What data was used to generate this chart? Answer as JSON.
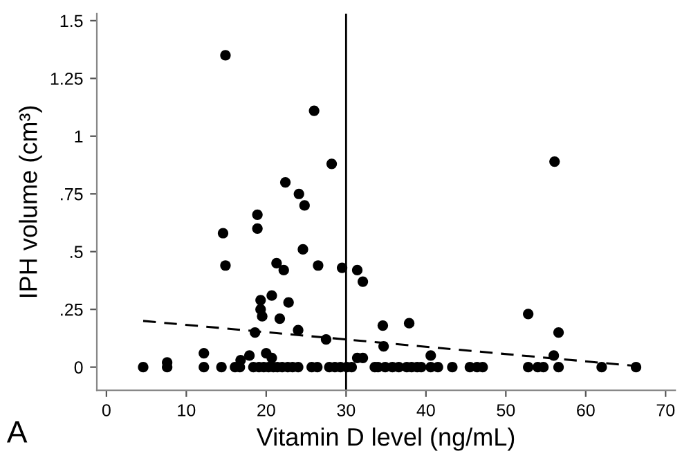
{
  "chart_data": {
    "type": "scatter",
    "xlabel": "Vitamin D level (ng/mL)",
    "ylabel": "IPH volume (cm³)",
    "annotations": [
      "A"
    ],
    "xlim": [
      -1.2,
      71.2
    ],
    "ylim": [
      -0.1,
      1.53
    ],
    "xticks": [
      0,
      10,
      20,
      30,
      40,
      50,
      60,
      70
    ],
    "yticks": [
      {
        "value": 0,
        "label": "0"
      },
      {
        "value": 0.25,
        "label": ".25"
      },
      {
        "value": 0.5,
        "label": ".5"
      },
      {
        "value": 0.75,
        "label": ".75"
      },
      {
        "value": 1,
        "label": "1"
      },
      {
        "value": 1.25,
        "label": "1.25"
      },
      {
        "value": 1.5,
        "label": "1.5"
      }
    ],
    "grid": false,
    "legend": false,
    "marker": "circle",
    "ref_lines": [
      {
        "axis": "x",
        "value": 30,
        "color": "#000000"
      }
    ],
    "series": [
      {
        "color": "#000000",
        "x": [
          14.9,
          26.0,
          28.2,
          22.4,
          24.1,
          24.8,
          18.9,
          18.9,
          14.6,
          56.1,
          24.6,
          14.9,
          21.3,
          22.2,
          26.5,
          29.5,
          31.4,
          32.1,
          20.7,
          19.3,
          19.3,
          19.5,
          22.8,
          21.7,
          18.6,
          24.0,
          27.5,
          34.6,
          34.7,
          12.2,
          17.9,
          16.8,
          20.0,
          20.7,
          31.4,
          32.1,
          37.9,
          40.6,
          52.8,
          56.6,
          56.0,
          4.6,
          7.6,
          7.6,
          12.2,
          14.4,
          16.1,
          16.7,
          18.4,
          19.1,
          19.7,
          20.3,
          20.9,
          21.4,
          22.0,
          22.7,
          23.3,
          24.0,
          25.7,
          26.4,
          27.9,
          28.6,
          29.3,
          30.1,
          30.7,
          33.6,
          34.0,
          34.9,
          35.8,
          36.6,
          37.6,
          38.2,
          38.9,
          39.4,
          40.6,
          41.5,
          43.3,
          45.5,
          46.4,
          47.1,
          52.8,
          54.0,
          54.7,
          56.6,
          62.0,
          66.3
        ],
        "values": [
          1.35,
          1.11,
          0.88,
          0.8,
          0.75,
          0.7,
          0.66,
          0.6,
          0.58,
          0.89,
          0.51,
          0.44,
          0.45,
          0.42,
          0.44,
          0.43,
          0.42,
          0.37,
          0.31,
          0.29,
          0.25,
          0.22,
          0.28,
          0.21,
          0.15,
          0.16,
          0.12,
          0.18,
          0.09,
          0.06,
          0.05,
          0.03,
          0.06,
          0.04,
          0.04,
          0.04,
          0.19,
          0.05,
          0.23,
          0.15,
          0.05,
          0,
          0.02,
          0,
          0,
          0,
          0,
          0,
          0,
          0,
          0,
          0,
          0,
          0,
          0,
          0,
          0,
          0,
          0,
          0,
          0,
          0,
          0,
          0,
          0,
          0,
          0,
          0,
          0,
          0,
          0,
          0,
          0,
          0,
          0,
          0,
          0,
          0,
          0,
          0,
          0,
          0,
          0,
          0,
          0,
          0
        ]
      },
      {
        "type": "line",
        "color": "#000000",
        "line_style": "dashed",
        "marker": "none",
        "x": [
          4.6,
          66.3
        ],
        "values": [
          0.2,
          0.005
        ]
      }
    ]
  }
}
